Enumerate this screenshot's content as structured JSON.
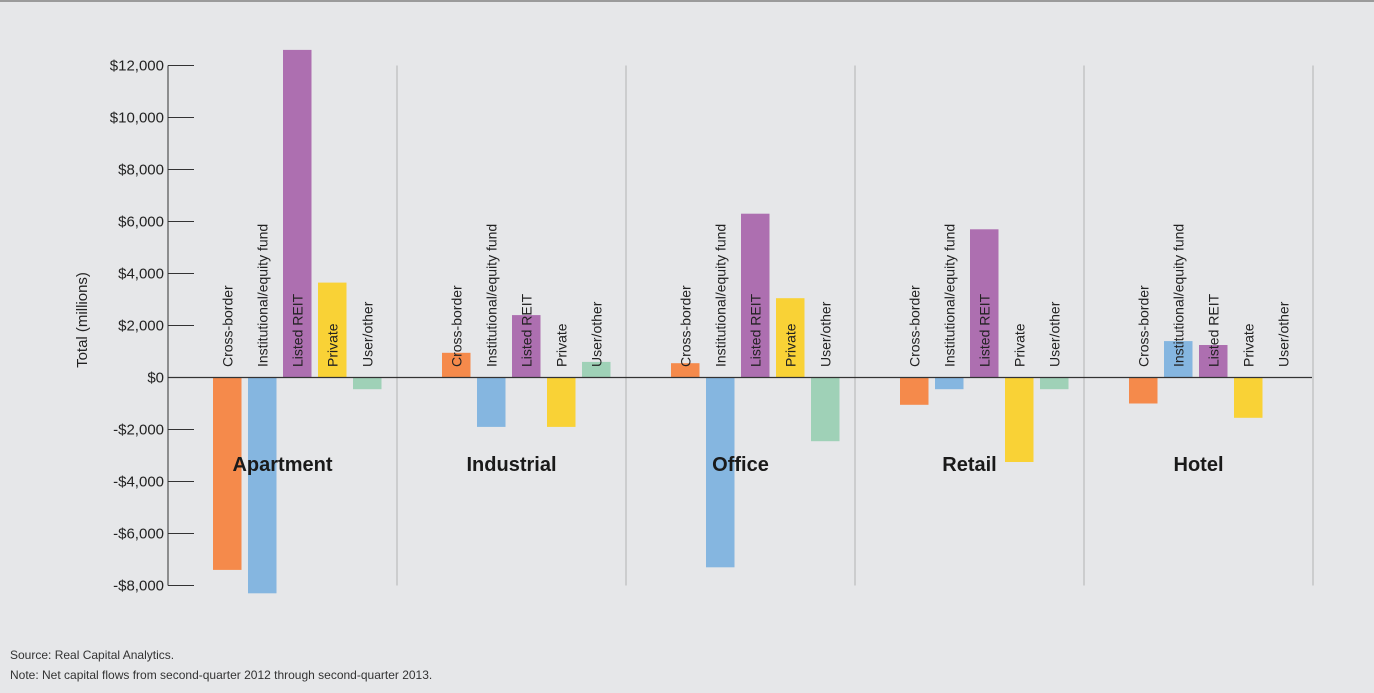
{
  "chart_data": {
    "type": "bar",
    "ylabel": "Total (millions)",
    "ylim": [
      -8000,
      12000
    ],
    "yticks": [
      12000,
      10000,
      8000,
      6000,
      4000,
      2000,
      0,
      -2000,
      -4000,
      -6000,
      -8000
    ],
    "ytick_labels": [
      "$12,000",
      "$10,000",
      "$8,000",
      "$6,000",
      "$4,000",
      "$2,000",
      "$0",
      "-$2,000",
      "-$4,000",
      "-$6,000",
      "-$8,000"
    ],
    "categories": [
      "Apartment",
      "Industrial",
      "Office",
      "Retail",
      "Hotel"
    ],
    "series": [
      {
        "name": "Cross-border",
        "color": "#f58a4b",
        "values": [
          -7400,
          950,
          550,
          -1050,
          -1000
        ]
      },
      {
        "name": "Institutional/equity fund",
        "color": "#85b6e0",
        "values": [
          -8300,
          -1900,
          -7300,
          -450,
          1400
        ]
      },
      {
        "name": "Listed REIT",
        "color": "#ad6fb0",
        "values": [
          12600,
          2400,
          6300,
          5700,
          1250
        ]
      },
      {
        "name": "Private",
        "color": "#f9d236",
        "values": [
          3650,
          -1900,
          3050,
          -3250,
          -1550
        ]
      },
      {
        "name": "User/other",
        "color": "#9fd1b7",
        "values": [
          -450,
          600,
          -2450,
          -450,
          0
        ]
      }
    ]
  },
  "notes": {
    "source": "Source: Real Capital Analytics.",
    "note": "Note: Net capital flows from second-quarter 2012 through second-quarter 2013."
  }
}
